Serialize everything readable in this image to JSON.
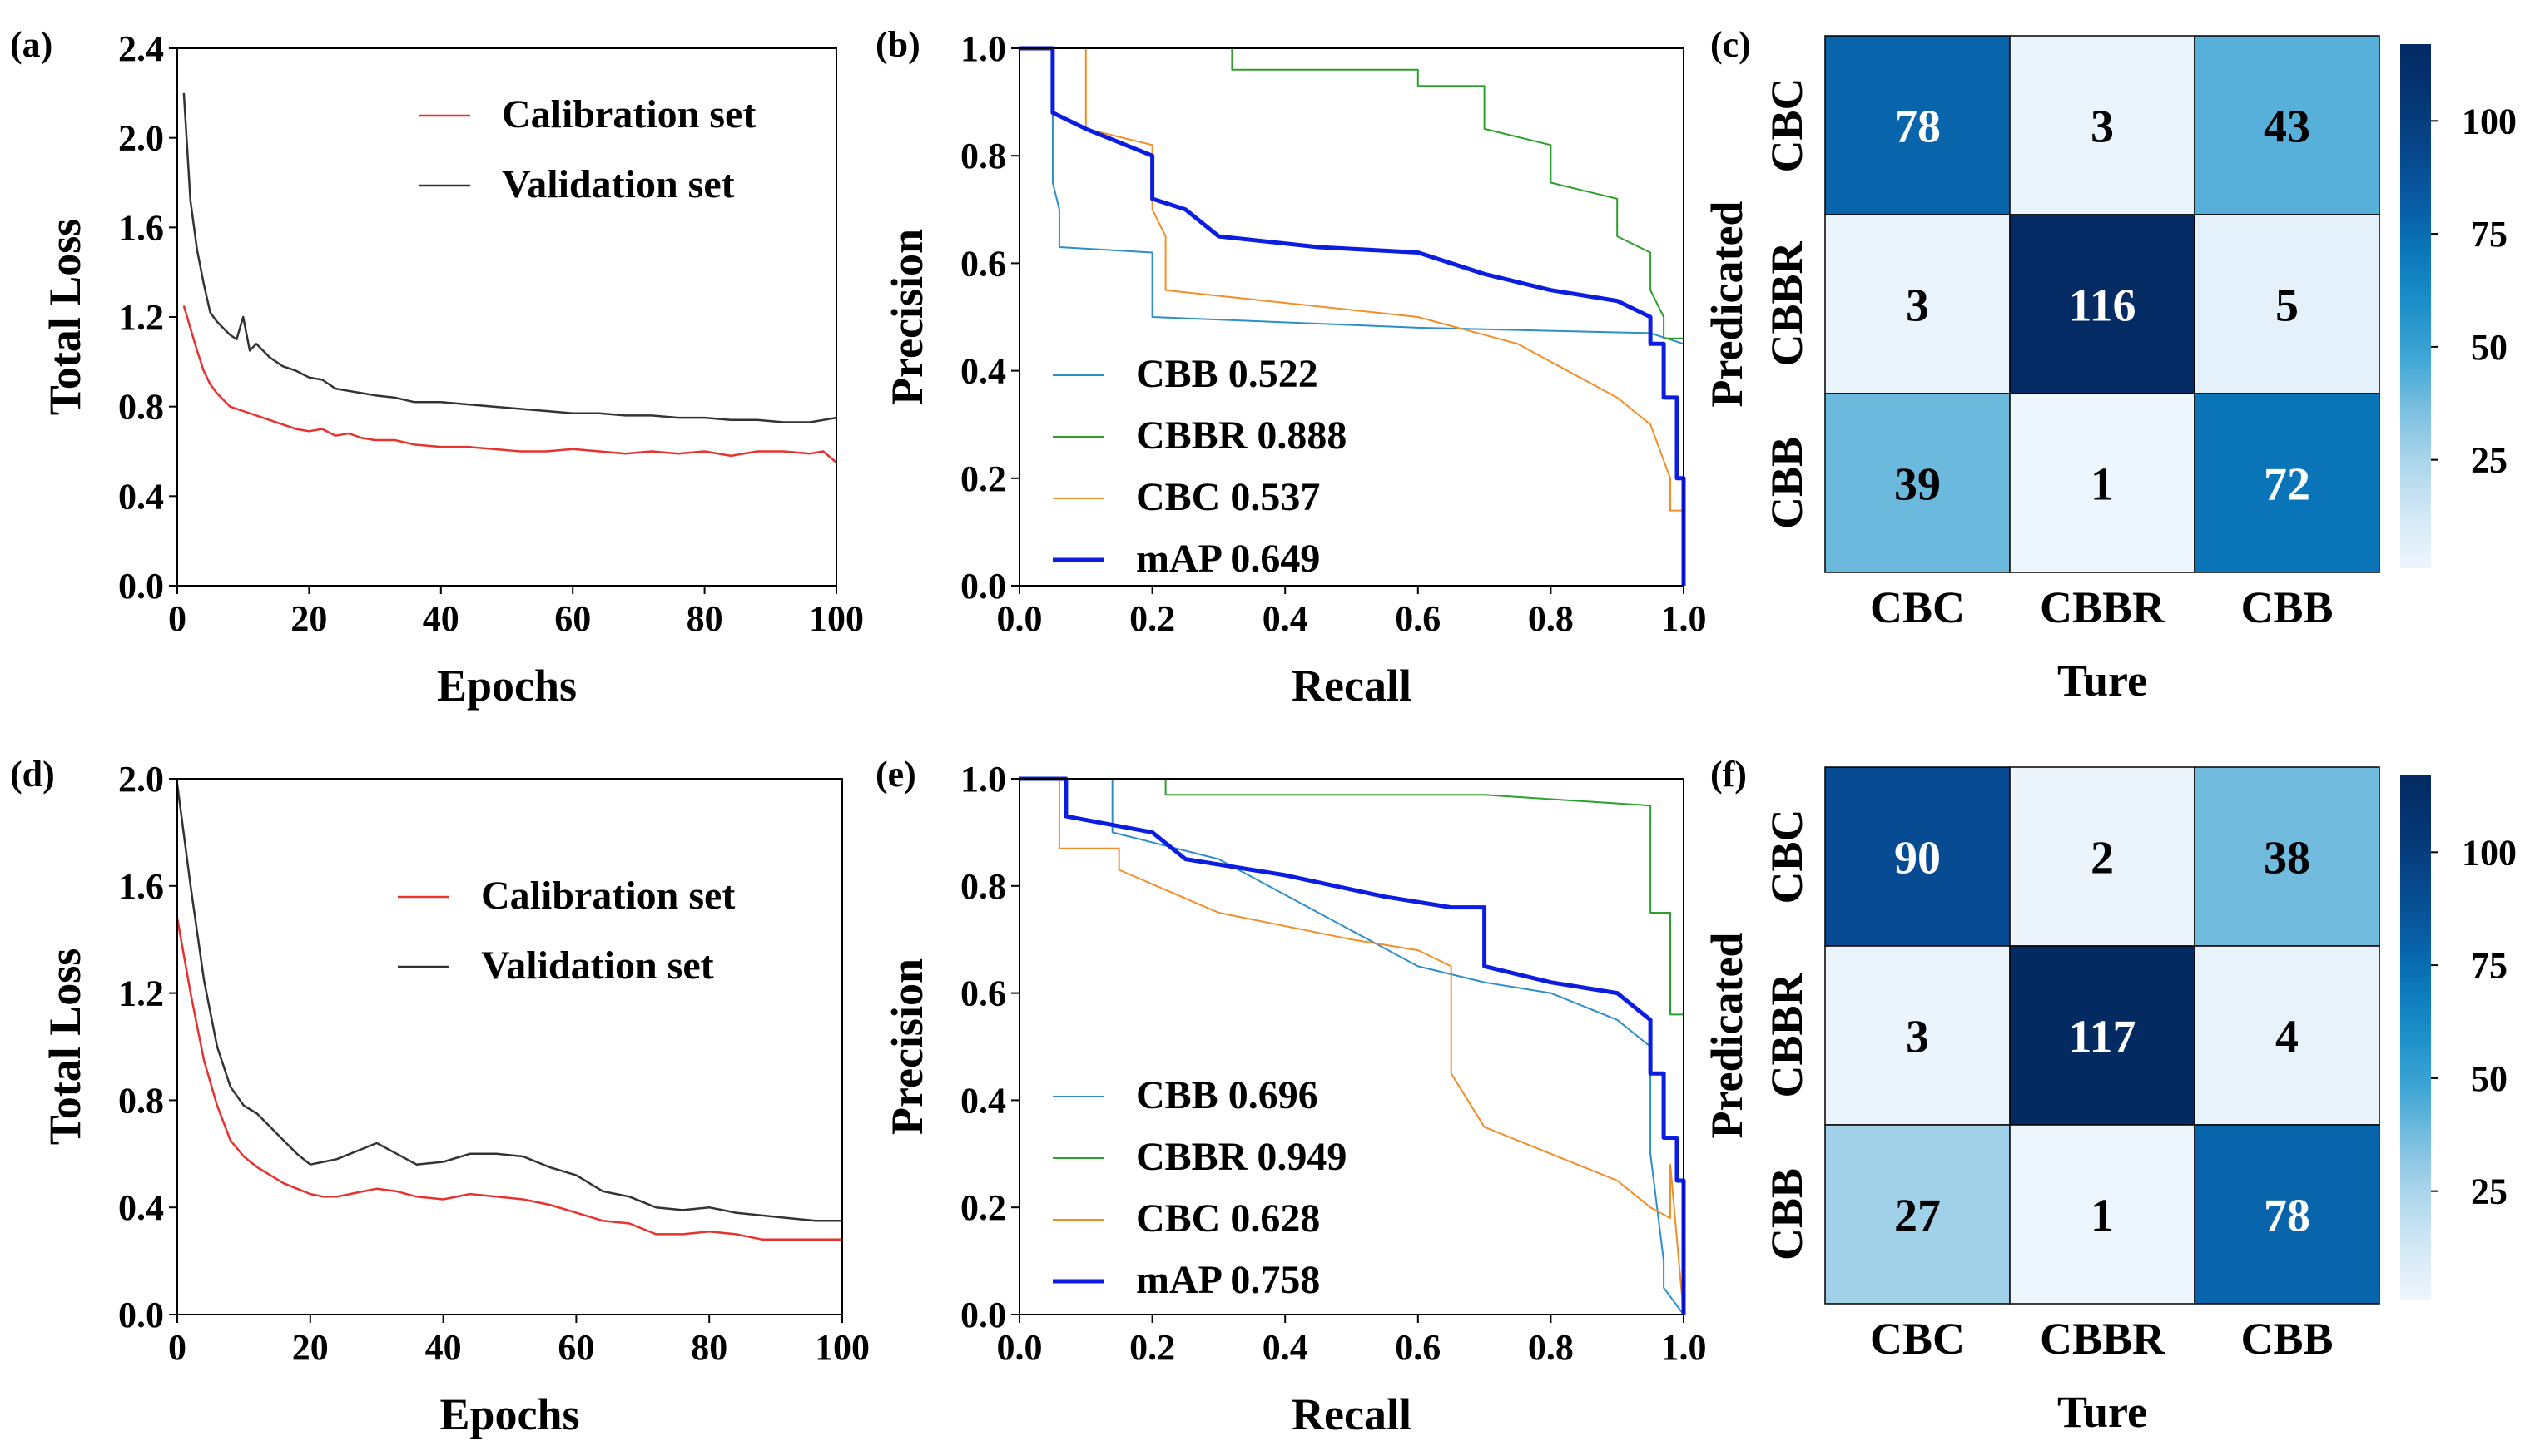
{
  "figure_panels": [
    "(a)",
    "(b)",
    "(c)",
    "(d)",
    "(e)",
    "(f)"
  ],
  "chart_data": [
    {
      "id": "a",
      "type": "line",
      "panel_label": "(a)",
      "xlabel": "Epochs",
      "ylabel": "Total Loss",
      "xlim": [
        0,
        100
      ],
      "ylim": [
        0,
        2.4
      ],
      "xticks": [
        0,
        20,
        40,
        60,
        80,
        100
      ],
      "yticks": [
        0.0,
        0.4,
        0.8,
        1.2,
        1.6,
        2.0,
        2.4
      ],
      "ytick_labels": [
        "0.0",
        "0.4",
        "0.8",
        "1.2",
        "1.6",
        "2.0",
        "2.4"
      ],
      "legend_position": "upper-right",
      "series": [
        {
          "name": "Calibration set",
          "color": "#e8322f",
          "x": [
            1,
            2,
            3,
            4,
            5,
            6,
            7,
            8,
            9,
            10,
            12,
            14,
            16,
            18,
            20,
            22,
            24,
            26,
            28,
            30,
            33,
            36,
            40,
            44,
            48,
            52,
            56,
            60,
            64,
            68,
            72,
            76,
            80,
            84,
            88,
            92,
            96,
            98,
            100
          ],
          "y": [
            1.25,
            1.15,
            1.05,
            0.96,
            0.9,
            0.86,
            0.83,
            0.8,
            0.79,
            0.78,
            0.76,
            0.74,
            0.72,
            0.7,
            0.69,
            0.7,
            0.67,
            0.68,
            0.66,
            0.65,
            0.65,
            0.63,
            0.62,
            0.62,
            0.61,
            0.6,
            0.6,
            0.61,
            0.6,
            0.59,
            0.6,
            0.59,
            0.6,
            0.58,
            0.6,
            0.6,
            0.59,
            0.6,
            0.55
          ]
        },
        {
          "name": "Validation set",
          "color": "#333333",
          "x": [
            1,
            2,
            3,
            4,
            5,
            6,
            7,
            8,
            9,
            10,
            11,
            12,
            14,
            16,
            18,
            20,
            22,
            24,
            26,
            28,
            30,
            33,
            36,
            40,
            44,
            48,
            52,
            56,
            60,
            64,
            68,
            72,
            76,
            80,
            84,
            88,
            92,
            96,
            98,
            100
          ],
          "y": [
            2.2,
            1.72,
            1.5,
            1.35,
            1.22,
            1.18,
            1.15,
            1.12,
            1.1,
            1.2,
            1.05,
            1.08,
            1.02,
            0.98,
            0.96,
            0.93,
            0.92,
            0.88,
            0.87,
            0.86,
            0.85,
            0.84,
            0.82,
            0.82,
            0.81,
            0.8,
            0.79,
            0.78,
            0.77,
            0.77,
            0.76,
            0.76,
            0.75,
            0.75,
            0.74,
            0.74,
            0.73,
            0.73,
            0.74,
            0.75
          ]
        }
      ]
    },
    {
      "id": "b",
      "type": "line",
      "panel_label": "(b)",
      "xlabel": "Recall",
      "ylabel": "Precision",
      "xlim": [
        0,
        1
      ],
      "ylim": [
        0,
        1
      ],
      "xticks": [
        0.0,
        0.2,
        0.4,
        0.6,
        0.8,
        1.0
      ],
      "xtick_labels": [
        "0.0",
        "0.2",
        "0.4",
        "0.6",
        "0.8",
        "1.0"
      ],
      "yticks": [
        0.0,
        0.2,
        0.4,
        0.6,
        0.8,
        1.0
      ],
      "ytick_labels": [
        "0.0",
        "0.2",
        "0.4",
        "0.6",
        "0.8",
        "1.0"
      ],
      "legend_position": "lower-left",
      "series": [
        {
          "name": "CBB 0.522",
          "color": "#2d8ec9",
          "width": 2,
          "x": [
            0,
            0.05,
            0.05,
            0.06,
            0.06,
            0.2,
            0.2,
            0.6,
            0.95,
            1.0,
            1.0
          ],
          "y": [
            1.0,
            1.0,
            0.75,
            0.7,
            0.63,
            0.62,
            0.5,
            0.48,
            0.47,
            0.45,
            0.0
          ]
        },
        {
          "name": "CBBR 0.888",
          "color": "#2ca02c",
          "width": 2,
          "x": [
            0,
            0.32,
            0.32,
            0.6,
            0.6,
            0.7,
            0.7,
            0.8,
            0.8,
            0.9,
            0.9,
            0.95,
            0.95,
            0.97,
            0.97,
            1.0
          ],
          "y": [
            1.0,
            1.0,
            0.96,
            0.96,
            0.93,
            0.93,
            0.85,
            0.82,
            0.75,
            0.72,
            0.65,
            0.62,
            0.55,
            0.5,
            0.46,
            0.46
          ]
        },
        {
          "name": "CBC 0.537",
          "color": "#f28d28",
          "width": 2,
          "x": [
            0,
            0.1,
            0.1,
            0.2,
            0.2,
            0.22,
            0.22,
            0.6,
            0.75,
            0.9,
            0.95,
            0.98,
            0.98,
            1.0,
            1.0
          ],
          "y": [
            1.0,
            1.0,
            0.85,
            0.82,
            0.7,
            0.65,
            0.55,
            0.5,
            0.45,
            0.35,
            0.3,
            0.2,
            0.14,
            0.14,
            0.0
          ]
        },
        {
          "name": "mAP 0.649",
          "color": "#0b1ee0",
          "width": 5,
          "x": [
            0,
            0.05,
            0.05,
            0.1,
            0.2,
            0.2,
            0.25,
            0.3,
            0.45,
            0.6,
            0.7,
            0.8,
            0.9,
            0.95,
            0.95,
            0.97,
            0.97,
            0.99,
            0.99,
            1.0,
            1.0
          ],
          "y": [
            1.0,
            1.0,
            0.88,
            0.85,
            0.8,
            0.72,
            0.7,
            0.65,
            0.63,
            0.62,
            0.58,
            0.55,
            0.53,
            0.5,
            0.45,
            0.45,
            0.35,
            0.35,
            0.2,
            0.2,
            0.0
          ]
        }
      ]
    },
    {
      "id": "c",
      "type": "heatmap",
      "panel_label": "(c)",
      "xlabel": "Ture",
      "ylabel": "Predicated",
      "x_categories": [
        "CBC",
        "CBBR",
        "CBB"
      ],
      "y_categories": [
        "CBC",
        "CBBR",
        "CBB"
      ],
      "matrix": [
        [
          78,
          3,
          43
        ],
        [
          3,
          116,
          5
        ],
        [
          39,
          1,
          72
        ]
      ],
      "colorbar_ticks": [
        25,
        50,
        75,
        100
      ],
      "colorbar_range": [
        1,
        117
      ]
    },
    {
      "id": "d",
      "type": "line",
      "panel_label": "(d)",
      "xlabel": "Epochs",
      "ylabel": "Total Loss",
      "xlim": [
        0,
        100
      ],
      "ylim": [
        0,
        2.0
      ],
      "xticks": [
        0,
        20,
        40,
        60,
        80,
        100
      ],
      "yticks": [
        0.0,
        0.4,
        0.8,
        1.2,
        1.6,
        2.0
      ],
      "ytick_labels": [
        "0.0",
        "0.4",
        "0.8",
        "1.2",
        "1.6",
        "2.0"
      ],
      "legend_position": "upper-right",
      "series": [
        {
          "name": "Calibration set",
          "color": "#e8322f",
          "x": [
            0,
            2,
            4,
            6,
            8,
            10,
            12,
            14,
            16,
            18,
            20,
            22,
            24,
            26,
            28,
            30,
            33,
            36,
            40,
            44,
            48,
            52,
            56,
            60,
            64,
            68,
            72,
            76,
            80,
            84,
            88,
            92,
            96,
            100
          ],
          "y": [
            1.48,
            1.2,
            0.95,
            0.78,
            0.65,
            0.59,
            0.55,
            0.52,
            0.49,
            0.47,
            0.45,
            0.44,
            0.44,
            0.45,
            0.46,
            0.47,
            0.46,
            0.44,
            0.43,
            0.45,
            0.44,
            0.43,
            0.41,
            0.38,
            0.35,
            0.34,
            0.3,
            0.3,
            0.31,
            0.3,
            0.28,
            0.28,
            0.28,
            0.28
          ]
        },
        {
          "name": "Validation set",
          "color": "#333333",
          "x": [
            0,
            2,
            4,
            6,
            8,
            10,
            12,
            14,
            16,
            18,
            20,
            22,
            24,
            26,
            28,
            30,
            33,
            36,
            40,
            44,
            48,
            52,
            56,
            60,
            64,
            68,
            72,
            76,
            80,
            84,
            88,
            92,
            96,
            100
          ],
          "y": [
            1.98,
            1.6,
            1.25,
            1.0,
            0.85,
            0.78,
            0.75,
            0.7,
            0.65,
            0.6,
            0.56,
            0.57,
            0.58,
            0.6,
            0.62,
            0.64,
            0.6,
            0.56,
            0.57,
            0.6,
            0.6,
            0.59,
            0.55,
            0.52,
            0.46,
            0.44,
            0.4,
            0.39,
            0.4,
            0.38,
            0.37,
            0.36,
            0.35,
            0.35
          ]
        }
      ]
    },
    {
      "id": "e",
      "type": "line",
      "panel_label": "(e)",
      "xlabel": "Recall",
      "ylabel": "Precision",
      "xlim": [
        0,
        1
      ],
      "ylim": [
        0,
        1
      ],
      "xticks": [
        0.0,
        0.2,
        0.4,
        0.6,
        0.8,
        1.0
      ],
      "xtick_labels": [
        "0.0",
        "0.2",
        "0.4",
        "0.6",
        "0.8",
        "1.0"
      ],
      "yticks": [
        0.0,
        0.2,
        0.4,
        0.6,
        0.8,
        1.0
      ],
      "ytick_labels": [
        "0.0",
        "0.2",
        "0.4",
        "0.6",
        "0.8",
        "1.0"
      ],
      "legend_position": "lower-left",
      "series": [
        {
          "name": "CBB 0.696",
          "color": "#2d8ec9",
          "width": 2,
          "x": [
            0,
            0.14,
            0.14,
            0.3,
            0.45,
            0.6,
            0.7,
            0.8,
            0.9,
            0.95,
            0.95,
            0.97,
            0.97,
            1.0
          ],
          "y": [
            1.0,
            1.0,
            0.9,
            0.85,
            0.75,
            0.65,
            0.62,
            0.6,
            0.55,
            0.5,
            0.3,
            0.1,
            0.05,
            0.0
          ]
        },
        {
          "name": "CBBR 0.949",
          "color": "#2ca02c",
          "width": 2,
          "x": [
            0,
            0.22,
            0.22,
            0.7,
            0.95,
            0.95,
            0.98,
            0.98,
            1.0
          ],
          "y": [
            1.0,
            1.0,
            0.97,
            0.97,
            0.95,
            0.75,
            0.75,
            0.56,
            0.56
          ]
        },
        {
          "name": "CBC 0.628",
          "color": "#f28d28",
          "width": 2,
          "x": [
            0,
            0.06,
            0.06,
            0.15,
            0.15,
            0.3,
            0.5,
            0.6,
            0.65,
            0.65,
            0.7,
            0.8,
            0.9,
            0.95,
            0.98,
            0.98,
            1.0
          ],
          "y": [
            1.0,
            1.0,
            0.87,
            0.87,
            0.83,
            0.75,
            0.7,
            0.68,
            0.65,
            0.45,
            0.35,
            0.3,
            0.25,
            0.2,
            0.18,
            0.28,
            0.0
          ]
        },
        {
          "name": "mAP 0.758",
          "color": "#0b1ee0",
          "width": 5,
          "x": [
            0,
            0.07,
            0.07,
            0.2,
            0.25,
            0.4,
            0.55,
            0.65,
            0.7,
            0.7,
            0.8,
            0.9,
            0.93,
            0.95,
            0.95,
            0.97,
            0.97,
            0.99,
            0.99,
            1.0,
            1.0
          ],
          "y": [
            1.0,
            1.0,
            0.93,
            0.9,
            0.85,
            0.82,
            0.78,
            0.76,
            0.76,
            0.65,
            0.62,
            0.6,
            0.57,
            0.55,
            0.45,
            0.45,
            0.33,
            0.33,
            0.25,
            0.25,
            0.0
          ]
        }
      ]
    },
    {
      "id": "f",
      "type": "heatmap",
      "panel_label": "(f)",
      "xlabel": "Ture",
      "ylabel": "Predicated",
      "x_categories": [
        "CBC",
        "CBBR",
        "CBB"
      ],
      "y_categories": [
        "CBC",
        "CBBR",
        "CBB"
      ],
      "matrix": [
        [
          90,
          2,
          38
        ],
        [
          3,
          117,
          4
        ],
        [
          27,
          1,
          78
        ]
      ],
      "colorbar_ticks": [
        25,
        50,
        75,
        100
      ],
      "colorbar_range": [
        1,
        117
      ]
    }
  ]
}
